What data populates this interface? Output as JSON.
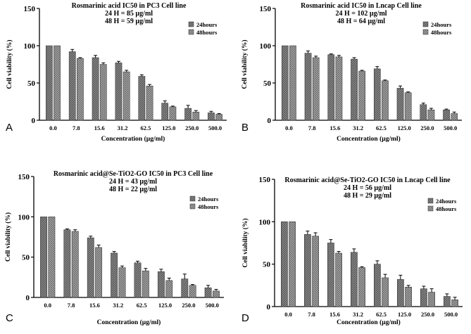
{
  "colors": {
    "s24": "#808080",
    "s48": "#9a9a9a",
    "axis": "#000000",
    "error": "#000000"
  },
  "chart_data": [
    {
      "type": "bar",
      "panel_label": "A",
      "title_lines": [
        "Rosmarinic acid IC50 in PC3 Cell line",
        "24 H = 85 µg/ml",
        "48 H = 59 µg/ml"
      ],
      "xlabel": "Concentration (µg/ml)",
      "ylabel": "Cell viability (%)",
      "ylim": [
        0,
        150
      ],
      "yticks": [
        0,
        50,
        100,
        150
      ],
      "categories": [
        "0.0",
        "7.8",
        "15.6",
        "31.2",
        "62.5",
        "125.0",
        "250.0",
        "500.0"
      ],
      "series": [
        {
          "name": "24hours",
          "values": [
            100,
            92,
            84,
            77,
            59,
            23,
            16,
            10
          ],
          "errors": [
            0,
            3,
            3,
            2,
            2,
            3,
            4,
            2
          ]
        },
        {
          "name": "48hours",
          "values": [
            100,
            83,
            75,
            65,
            46,
            18,
            11,
            8
          ],
          "errors": [
            0,
            1,
            2,
            2,
            2,
            1,
            2,
            1
          ]
        }
      ]
    },
    {
      "type": "bar",
      "panel_label": "B",
      "title_lines": [
        "Rosmarinic acid IC50 in Lncap Cell line",
        "24 H = 102 µg/ml",
        "48 H = 64 µg/ml"
      ],
      "xlabel": "Concentration (µg/ml)",
      "ylabel": "Cell viability (%)",
      "ylim": [
        0,
        150
      ],
      "yticks": [
        0,
        50,
        100,
        150
      ],
      "categories": [
        "0.0",
        "7.8",
        "15.6",
        "31.2",
        "62.5",
        "125.0",
        "250.0",
        "500.0"
      ],
      "series": [
        {
          "name": "24hours",
          "values": [
            100,
            90,
            88,
            82,
            69,
            43,
            21,
            14
          ],
          "errors": [
            0,
            3,
            1,
            2,
            3,
            3,
            2,
            1
          ]
        },
        {
          "name": "48hours",
          "values": [
            100,
            84,
            85,
            66,
            53,
            37,
            14,
            9
          ],
          "errors": [
            0,
            2,
            2,
            1,
            1,
            1,
            2,
            2
          ]
        }
      ]
    },
    {
      "type": "bar",
      "panel_label": "C",
      "title_lines": [
        "Rosmarinic acid@Se-TiO2-GO IC50 in PC3 Cell line",
        "24 H = 43 µg/ml",
        "48 H = 22 µg/ml"
      ],
      "xlabel": "Concentration (µg/ml)",
      "ylabel": "Cell viability (%)",
      "ylim": [
        0,
        150
      ],
      "yticks": [
        0,
        50,
        100,
        150
      ],
      "categories": [
        "0.0",
        "7.8",
        "15.6",
        "31.2",
        "62.5",
        "125.0",
        "250.0",
        "500.0"
      ],
      "series": [
        {
          "name": "24hours",
          "values": [
            100,
            84,
            74,
            55,
            43,
            32,
            23,
            12
          ],
          "errors": [
            0,
            1,
            2,
            2,
            2,
            3,
            6,
            3
          ]
        },
        {
          "name": "48hours",
          "values": [
            100,
            82,
            62,
            37,
            33,
            21,
            15,
            8
          ],
          "errors": [
            0,
            2,
            3,
            2,
            3,
            3,
            1,
            2
          ]
        }
      ]
    },
    {
      "type": "bar",
      "panel_label": "D",
      "title_lines": [
        "Rosmarinic acid@Se-TiO2-GO IC50 in Lncap Cell line",
        "24 H = 56 µg/ml",
        "48 H = 29 µg/ml"
      ],
      "xlabel": "Concentration (µg/ml)",
      "ylabel": "Cell viability (%)",
      "ylim": [
        0,
        150
      ],
      "yticks": [
        0,
        50,
        100,
        150
      ],
      "categories": [
        "0.0",
        "7.8",
        "15.6",
        "31.2",
        "62.5",
        "125.0",
        "250.0",
        "500.0"
      ],
      "series": [
        {
          "name": "24hours",
          "values": [
            100,
            85,
            75,
            64,
            50,
            32,
            21,
            12
          ],
          "errors": [
            0,
            4,
            4,
            4,
            4,
            5,
            3,
            3
          ]
        },
        {
          "name": "48hours",
          "values": [
            100,
            83,
            63,
            46,
            34,
            23,
            17,
            8
          ],
          "errors": [
            0,
            4,
            2,
            1,
            4,
            2,
            4,
            3
          ]
        }
      ]
    }
  ]
}
